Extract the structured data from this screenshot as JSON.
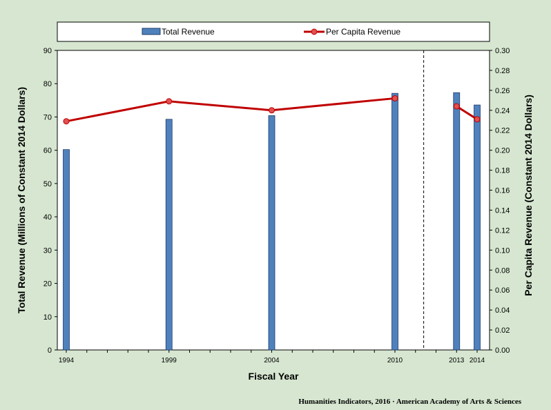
{
  "chart_data": {
    "type": "bar+line",
    "xlabel": "Fiscal Year",
    "ylabel_left": "Total Revenue (Millions of Constant 2014 Dollars)",
    "ylabel_right": "Per Capita Revenue (Constant 2014 Dollars)",
    "x_ticks": [
      "1994",
      "1999",
      "2004",
      "2010",
      "2013",
      "2014"
    ],
    "x_range": [
      1994,
      2014
    ],
    "ylim_left": [
      0,
      90
    ],
    "ylim_right": [
      0,
      0.3
    ],
    "left_ticks": [
      "0",
      "10",
      "20",
      "30",
      "40",
      "50",
      "60",
      "70",
      "80",
      "90"
    ],
    "right_ticks": [
      "0.00",
      "0.02",
      "0.04",
      "0.06",
      "0.08",
      "0.10",
      "0.12",
      "0.14",
      "0.16",
      "0.18",
      "0.20",
      "0.22",
      "0.24",
      "0.26",
      "0.28",
      "0.30"
    ],
    "break_after_year": 2010,
    "series": [
      {
        "name": "Total Revenue",
        "kind": "bar",
        "axis": "left",
        "color": "#4f81bd",
        "points": [
          {
            "x": 1994,
            "y": 60.2
          },
          {
            "x": 1999,
            "y": 69.3
          },
          {
            "x": 2004,
            "y": 70.4
          },
          {
            "x": 2010,
            "y": 77.1
          },
          {
            "x": 2013,
            "y": 77.3
          },
          {
            "x": 2014,
            "y": 73.6
          }
        ]
      },
      {
        "name": "Per Capita Revenue",
        "kind": "line",
        "axis": "right",
        "color": "#c00000",
        "points": [
          {
            "x": 1994,
            "y": 0.229
          },
          {
            "x": 1999,
            "y": 0.249
          },
          {
            "x": 2004,
            "y": 0.24
          },
          {
            "x": 2010,
            "y": 0.252
          },
          {
            "x": 2013,
            "y": 0.244
          },
          {
            "x": 2014,
            "y": 0.231
          }
        ]
      }
    ]
  },
  "credit": "Humanities Indicators, 2016 · American Academy of Arts & Sciences"
}
